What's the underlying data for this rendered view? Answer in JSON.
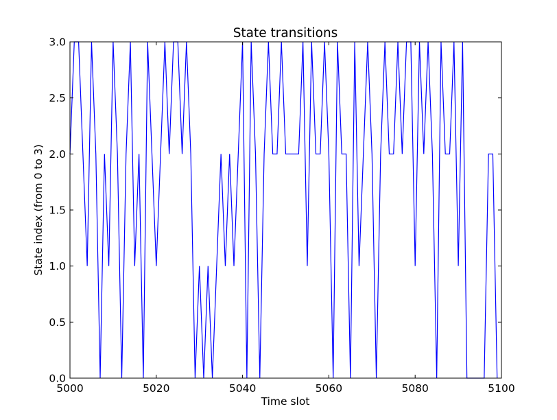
{
  "chart_data": {
    "type": "line",
    "title": "State transitions",
    "xlabel": "Time slot",
    "ylabel": "State index (from 0 to 3)",
    "xlim": [
      5000,
      5100
    ],
    "ylim": [
      0,
      3
    ],
    "xticks": [
      5000,
      5020,
      5040,
      5060,
      5080,
      5100
    ],
    "xtick_labels": [
      "5000",
      "5020",
      "5040",
      "5060",
      "5080",
      "5100"
    ],
    "yticks": [
      0,
      0.5,
      1,
      1.5,
      2,
      2.5,
      3
    ],
    "ytick_labels": [
      "0.0",
      "0.5",
      "1.0",
      "1.5",
      "2.0",
      "2.5",
      "3.0"
    ],
    "grid": false,
    "line_color": "#0000ff",
    "series": [
      {
        "x": [
          5000,
          5001,
          5002,
          5003,
          5004,
          5005,
          5006,
          5007,
          5008,
          5009,
          5010,
          5011,
          5012,
          5013,
          5014,
          5015,
          5016,
          5017,
          5018,
          5019,
          5020,
          5021,
          5022,
          5023,
          5024,
          5025,
          5026,
          5027,
          5028,
          5029,
          5030,
          5031,
          5032,
          5033,
          5034,
          5035,
          5036,
          5037,
          5038,
          5039,
          5040,
          5041,
          5042,
          5043,
          5044,
          5045,
          5046,
          5047,
          5048,
          5049,
          5050,
          5051,
          5052,
          5053,
          5054,
          5055,
          5056,
          5057,
          5058,
          5059,
          5060,
          5061,
          5062,
          5063,
          5064,
          5065,
          5066,
          5067,
          5068,
          5069,
          5070,
          5071,
          5072,
          5073,
          5074,
          5075,
          5076,
          5077,
          5078,
          5079,
          5080,
          5081,
          5082,
          5083,
          5084,
          5085,
          5086,
          5087,
          5088,
          5089,
          5090,
          5091,
          5092,
          5093,
          5094,
          5095,
          5096,
          5097,
          5098,
          5099
        ],
        "y": [
          2,
          3,
          3,
          2,
          1,
          3,
          2,
          0,
          2,
          1,
          3,
          2,
          0,
          2,
          3,
          1,
          2,
          0,
          3,
          2,
          1,
          2,
          3,
          2,
          3,
          3,
          2,
          3,
          2,
          0,
          1,
          0,
          1,
          0,
          1,
          2,
          1,
          2,
          1,
          2,
          3,
          0,
          3,
          2,
          0,
          2,
          3,
          2,
          2,
          3,
          2,
          2,
          2,
          2,
          3,
          1,
          3,
          2,
          2,
          3,
          2,
          0,
          3,
          2,
          2,
          0,
          3,
          1,
          2,
          3,
          2,
          0,
          2,
          3,
          2,
          2,
          3,
          2,
          3,
          3,
          1,
          3,
          2,
          3,
          2,
          0,
          3,
          2,
          2,
          3,
          1,
          3,
          0,
          0,
          0,
          0,
          0,
          2,
          2,
          0
        ]
      }
    ]
  }
}
